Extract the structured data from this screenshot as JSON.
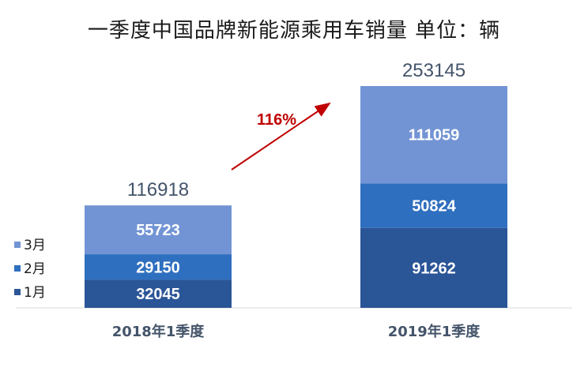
{
  "chart_data": {
    "type": "bar",
    "stacked": true,
    "title": "一季度中国品牌新能源乘用车销量 单位：辆",
    "categories": [
      "2018年1季度",
      "2019年1季度"
    ],
    "series": [
      {
        "name": "1月",
        "values": [
          32045,
          91262
        ],
        "color": "#2a5597"
      },
      {
        "name": "2月",
        "values": [
          29150,
          50824
        ],
        "color": "#2f6fbf"
      },
      {
        "name": "3月",
        "values": [
          55723,
          111059
        ],
        "color": "#7294d4"
      }
    ],
    "totals": [
      116918,
      253145
    ],
    "legend_position": "left",
    "grid": false,
    "annotation": {
      "text": "116%",
      "color": "#c00000"
    }
  }
}
